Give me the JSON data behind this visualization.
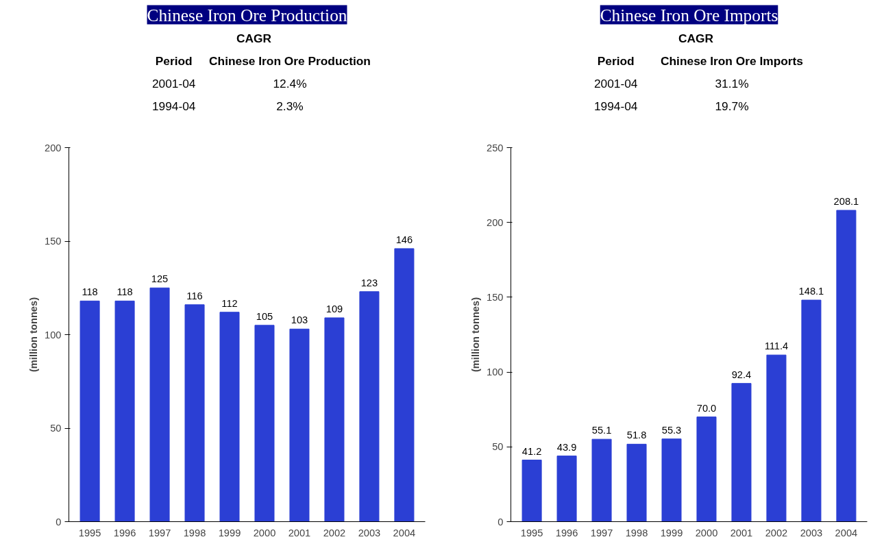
{
  "chart_data": [
    {
      "type": "bar",
      "title": "Chinese Iron Ore Production",
      "ylabel": "(million tonnes)",
      "categories": [
        "1995",
        "1996",
        "1997",
        "1998",
        "1999",
        "2000",
        "2001",
        "2002",
        "2003",
        "2004"
      ],
      "values": [
        118,
        118,
        125,
        116,
        112,
        105,
        103,
        109,
        123,
        146
      ],
      "value_labels": [
        "118",
        "118",
        "125",
        "116",
        "112",
        "105",
        "103",
        "109",
        "123",
        "146"
      ],
      "color": "#2b3fd4",
      "ylim": [
        0,
        200
      ],
      "yticks": [
        0,
        50,
        100,
        150,
        200
      ],
      "grid": false,
      "annotations": [
        "CAGR",
        "Period",
        "Chinese Iron Ore Production",
        "2001-04",
        "12.4%",
        "1994-04",
        "2.3%"
      ]
    },
    {
      "type": "bar",
      "title": "Chinese Iron Ore Imports",
      "ylabel": "(million tonnes)",
      "categories": [
        "1995",
        "1996",
        "1997",
        "1998",
        "1999",
        "2000",
        "2001",
        "2002",
        "2003",
        "2004"
      ],
      "values": [
        41.2,
        43.9,
        55.1,
        51.8,
        55.3,
        70.0,
        92.4,
        111.4,
        148.1,
        208.1
      ],
      "value_labels": [
        "41.2",
        "43.9",
        "55.1",
        "51.8",
        "55.3",
        "70.0",
        "92.4",
        "111.4",
        "148.1",
        "208.1"
      ],
      "color": "#2b3fd4",
      "ylim": [
        0,
        250
      ],
      "yticks": [
        0,
        50,
        100,
        150,
        200,
        250
      ],
      "grid": false,
      "annotations": [
        "CAGR",
        "Period",
        "Chinese Iron Ore Imports",
        "2001-04",
        "31.1%",
        "1994-04",
        "19.7%"
      ]
    }
  ]
}
